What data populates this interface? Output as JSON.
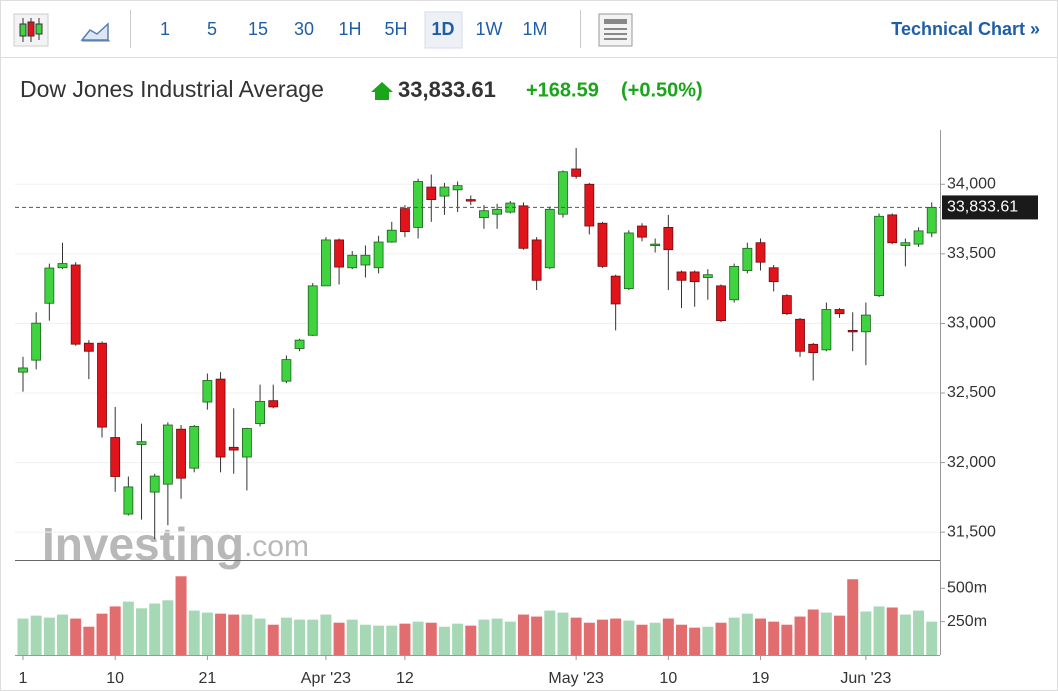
{
  "toolbar": {
    "intervals": [
      "1",
      "5",
      "15",
      "30",
      "1H",
      "5H",
      "1D",
      "1W",
      "1M"
    ],
    "selected": 6,
    "link": "Technical Chart »"
  },
  "header": {
    "name": "Dow Jones Industrial Average",
    "price": "33,833.61",
    "change": "+168.59",
    "change_pct": "(+0.50%)"
  },
  "chart_data": {
    "type": "candlestick",
    "watermark": {
      "brand": "Investing",
      "suffix": ".com"
    },
    "categories": [
      "1",
      null,
      null,
      null,
      null,
      null,
      null,
      "10",
      null,
      null,
      null,
      null,
      null,
      null,
      "21",
      null,
      null,
      null,
      null,
      null,
      null,
      null,
      null,
      "Apr '23",
      null,
      null,
      null,
      null,
      null,
      "12",
      null,
      null,
      null,
      null,
      null,
      null,
      null,
      null,
      null,
      null,
      null,
      null,
      "May '23",
      null,
      null,
      null,
      null,
      null,
      null,
      "10",
      null,
      null,
      null,
      null,
      null,
      null,
      "19",
      null,
      null,
      null,
      null,
      null,
      null,
      null,
      "Jun '23",
      null,
      null,
      null,
      null,
      null
    ],
    "open": [
      32650,
      32736,
      33145,
      33400,
      33420,
      32858,
      32858,
      32180,
      31630,
      32130,
      31788,
      31845,
      32240,
      31960,
      32435,
      32600,
      32110,
      32040,
      32280,
      32445,
      32585,
      32820,
      32915,
      33270,
      33600,
      33400,
      33420,
      33400,
      33585,
      33825,
      33690,
      33980,
      33915,
      33960,
      33890,
      33760,
      33785,
      33800,
      33845,
      33600,
      33400,
      33785,
      34110,
      34000,
      33720,
      33340,
      33250,
      33700,
      33560,
      33690,
      33370,
      33370,
      33330,
      33270,
      33170,
      33380,
      33580,
      33400,
      33200,
      33030,
      32850,
      32810,
      33100,
      32950,
      32940,
      33200,
      33780,
      33560,
      33570,
      33650
    ],
    "high": [
      32760,
      33080,
      33430,
      33580,
      33440,
      32880,
      32870,
      32400,
      31900,
      32280,
      31920,
      32290,
      32270,
      32270,
      32640,
      32650,
      32390,
      32250,
      32560,
      32560,
      32770,
      32890,
      33290,
      33620,
      33610,
      33520,
      33560,
      33630,
      33730,
      33850,
      34040,
      34070,
      34010,
      34020,
      33920,
      33850,
      33860,
      33880,
      33870,
      33620,
      33840,
      34100,
      34260,
      34010,
      33730,
      33350,
      33670,
      33720,
      33610,
      33780,
      33380,
      33380,
      33390,
      33280,
      33430,
      33580,
      33610,
      33420,
      33210,
      33040,
      32860,
      33150,
      33110,
      33080,
      33150,
      33790,
      33790,
      33610,
      33690,
      33870
    ],
    "low": [
      32510,
      32670,
      33020,
      33390,
      32840,
      32600,
      32180,
      31790,
      31620,
      31590,
      31450,
      31550,
      31740,
      31930,
      32380,
      31930,
      31920,
      31800,
      32260,
      32390,
      32570,
      32800,
      32910,
      33270,
      33280,
      33390,
      33330,
      33360,
      33580,
      33620,
      33610,
      33730,
      33780,
      33800,
      33850,
      33680,
      33680,
      33790,
      33530,
      33240,
      33390,
      33760,
      34040,
      33640,
      33400,
      32950,
      33240,
      33590,
      33510,
      33240,
      33110,
      33120,
      33170,
      33010,
      33150,
      33360,
      33380,
      33230,
      33060,
      32760,
      32590,
      32800,
      33040,
      32800,
      32700,
      33190,
      33570,
      33410,
      33550,
      33620
    ],
    "close": [
      32680,
      33002,
      33398,
      33430,
      32851,
      32800,
      32255,
      31900,
      31825,
      32150,
      31903,
      32270,
      31888,
      32260,
      32590,
      32040,
      32090,
      32245,
      32440,
      32400,
      32740,
      32880,
      33270,
      33600,
      33405,
      33490,
      33490,
      33585,
      33670,
      33660,
      34020,
      33890,
      33980,
      33990,
      33880,
      33810,
      33820,
      33865,
      33540,
      33310,
      33820,
      34090,
      34057,
      33700,
      33410,
      33140,
      33650,
      33620,
      33570,
      33530,
      33310,
      33300,
      33350,
      33020,
      33410,
      33540,
      33440,
      33300,
      33070,
      32800,
      32790,
      33100,
      33070,
      32940,
      33060,
      33770,
      33580,
      33580,
      33665,
      33833.61
    ],
    "volume": [
      273,
      295,
      280,
      303,
      273,
      212,
      310,
      364,
      400,
      350,
      386,
      410,
      590,
      333,
      318,
      310,
      303,
      303,
      273,
      227,
      280,
      265,
      265,
      303,
      242,
      265,
      227,
      220,
      220,
      235,
      250,
      242,
      212,
      235,
      220,
      265,
      273,
      250,
      303,
      288,
      333,
      318,
      280,
      242,
      265,
      273,
      258,
      227,
      242,
      273,
      227,
      205,
      212,
      242,
      280,
      310,
      273,
      250,
      227,
      288,
      341,
      318,
      295,
      568,
      326,
      364,
      356,
      303,
      333,
      250
    ],
    "ylim": [
      31300,
      34390
    ],
    "yticks": [
      {
        "value": 31500,
        "label": "31,500"
      },
      {
        "value": 32000,
        "label": "32,000"
      },
      {
        "value": 32500,
        "label": "32,500"
      },
      {
        "value": 33000,
        "label": "33,000"
      },
      {
        "value": 33500,
        "label": "33,500"
      },
      {
        "value": 34000,
        "label": "34,000"
      }
    ],
    "volume_ylim": [
      0,
      712
    ],
    "volume_yticks": [
      {
        "value": 250,
        "label": "250m"
      },
      {
        "value": 500,
        "label": "500m"
      }
    ],
    "last_value": 33833.61,
    "last_label": "33,833.61",
    "up_color": "#3fd43f",
    "down_color": "#e2141b",
    "volume_up_color": "#a7d8b6",
    "volume_down_color": "#e26d6f",
    "grid": true
  }
}
